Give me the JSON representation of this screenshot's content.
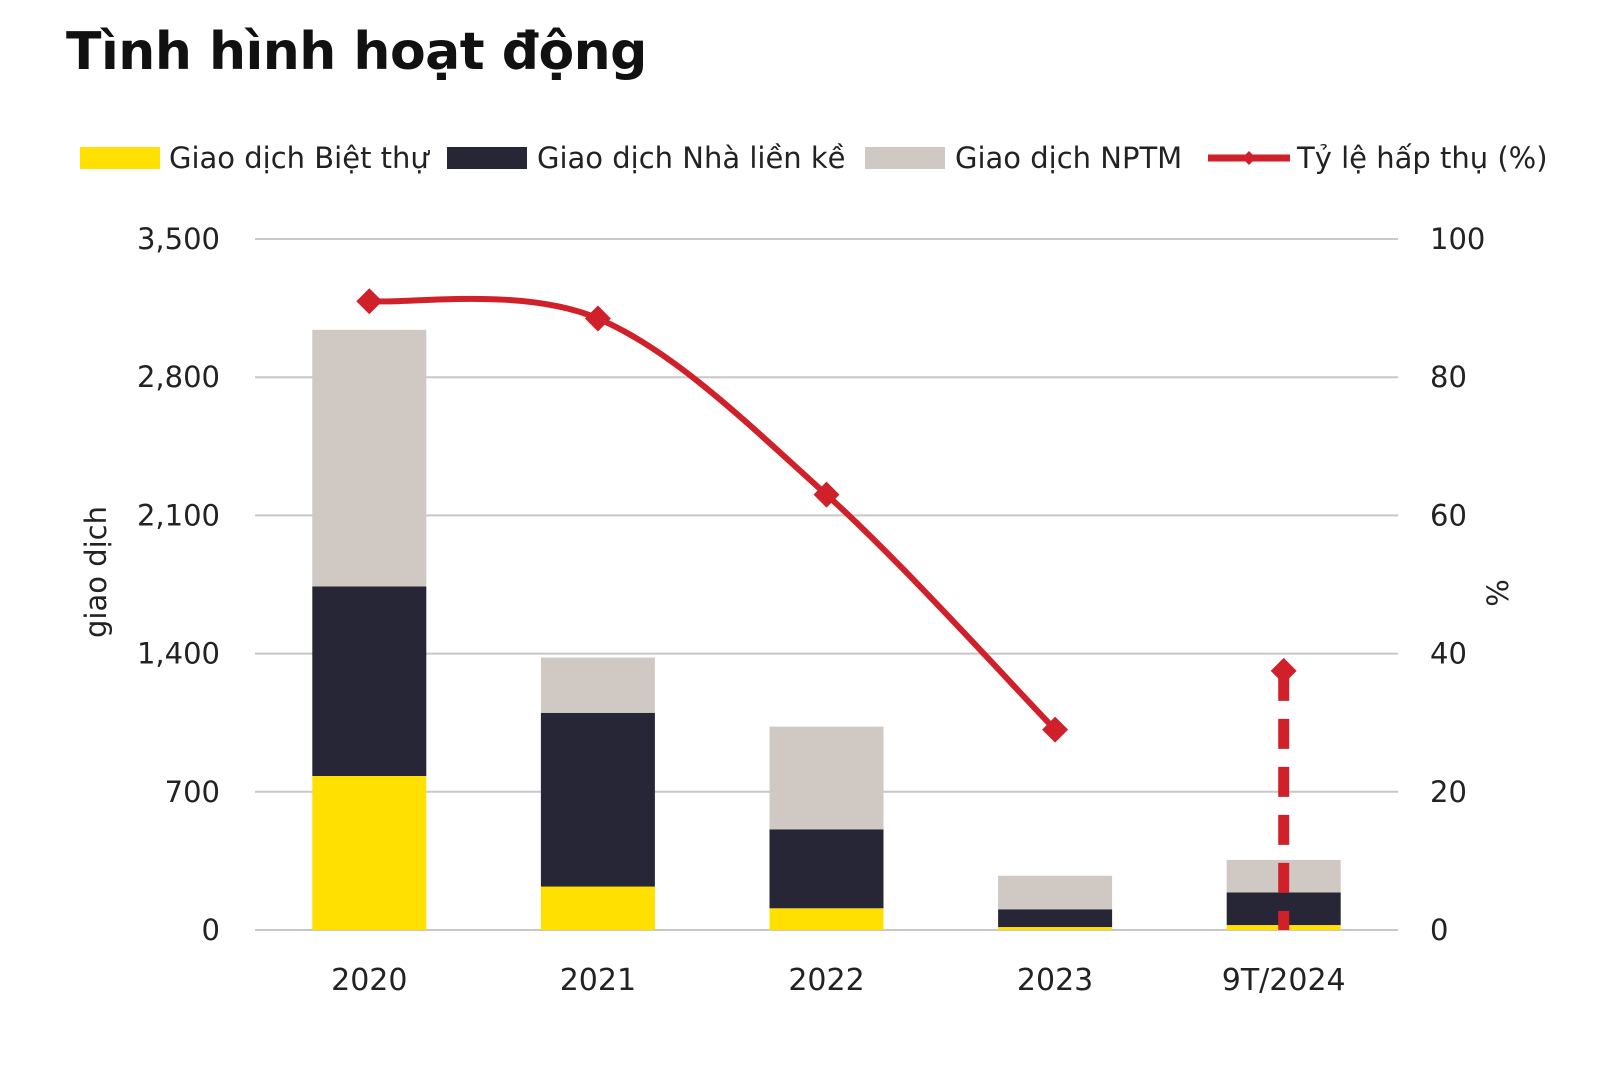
{
  "title": "Tình hình hoạt động",
  "colors": {
    "villa": "#FFE000",
    "townhouse": "#262637",
    "shophouse": "#CFC8C3",
    "rate": "#D0202A",
    "grid": "#C8C8C8"
  },
  "chart_data": {
    "type": "bar",
    "stacked": true,
    "categories": [
      "2020",
      "2021",
      "2022",
      "2023",
      "9T/2024"
    ],
    "series": [
      {
        "name": "Giao dịch Biệt thự",
        "values": [
          780,
          220,
          110,
          15,
          25
        ]
      },
      {
        "name": "Giao dịch Nhà liền kề",
        "values": [
          960,
          880,
          400,
          90,
          165
        ]
      },
      {
        "name": "Giao dịch NPTM",
        "values": [
          1300,
          280,
          520,
          170,
          165
        ]
      }
    ],
    "line_series": {
      "name": "Tỷ lệ hấp thụ (%)",
      "axis": "right",
      "values": [
        91,
        88.5,
        63,
        29,
        37.5
      ],
      "dashed_last_segment": true
    },
    "ylabel": "giao dịch",
    "ylabel_right": "%",
    "ylim": [
      0,
      3500
    ],
    "ylim_right": [
      0,
      100
    ],
    "yticks": [
      "0",
      "700",
      "1,400",
      "2,100",
      "2,800",
      "3,500"
    ],
    "yticks_right": [
      "0",
      "20",
      "40",
      "60",
      "80",
      "100"
    ],
    "grid": true,
    "legend_position": "top"
  }
}
